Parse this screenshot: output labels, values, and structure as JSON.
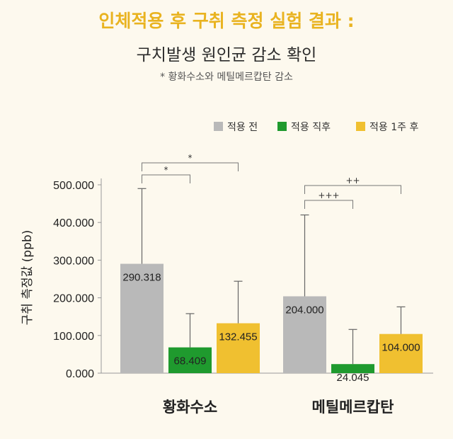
{
  "header": {
    "title": "인체적용 후 구취 측정 실험 결과 :",
    "subtitle": "구치발생 원인균 감소 확인",
    "note": "* 황화수소와 메틸메르캅탄 감소"
  },
  "chart_data": {
    "type": "bar",
    "ylabel": "구취 측정값 (ppb)",
    "ylim": [
      0,
      500
    ],
    "yticks": [
      "0.000",
      "100.000",
      "200.000",
      "300.000",
      "400.000",
      "500.000"
    ],
    "categories": [
      "황화수소",
      "메틸메르캅탄"
    ],
    "legend_position": "top-right",
    "series": [
      {
        "name": "적용 전",
        "color": "#b9b9b9",
        "values": [
          290.318,
          204.0
        ],
        "labels": [
          "290.318",
          "204.000"
        ],
        "error_upper": [
          490,
          420
        ]
      },
      {
        "name": "적용 직후",
        "color": "#1f9a2e",
        "values": [
          68.409,
          24.045
        ],
        "labels": [
          "68.409",
          "24.045"
        ],
        "error_upper": [
          158,
          116
        ]
      },
      {
        "name": "적용 1주 후",
        "color": "#f0c030",
        "values": [
          132.455,
          104.0
        ],
        "labels": [
          "132.455",
          "104.000"
        ],
        "error_upper": [
          244,
          176
        ]
      }
    ],
    "significance": [
      {
        "group": 0,
        "from": 0,
        "to": 1,
        "label": "*"
      },
      {
        "group": 0,
        "from": 0,
        "to": 2,
        "label": "*"
      },
      {
        "group": 1,
        "from": 0,
        "to": 1,
        "label": "+++"
      },
      {
        "group": 1,
        "from": 0,
        "to": 2,
        "label": "++"
      }
    ]
  }
}
